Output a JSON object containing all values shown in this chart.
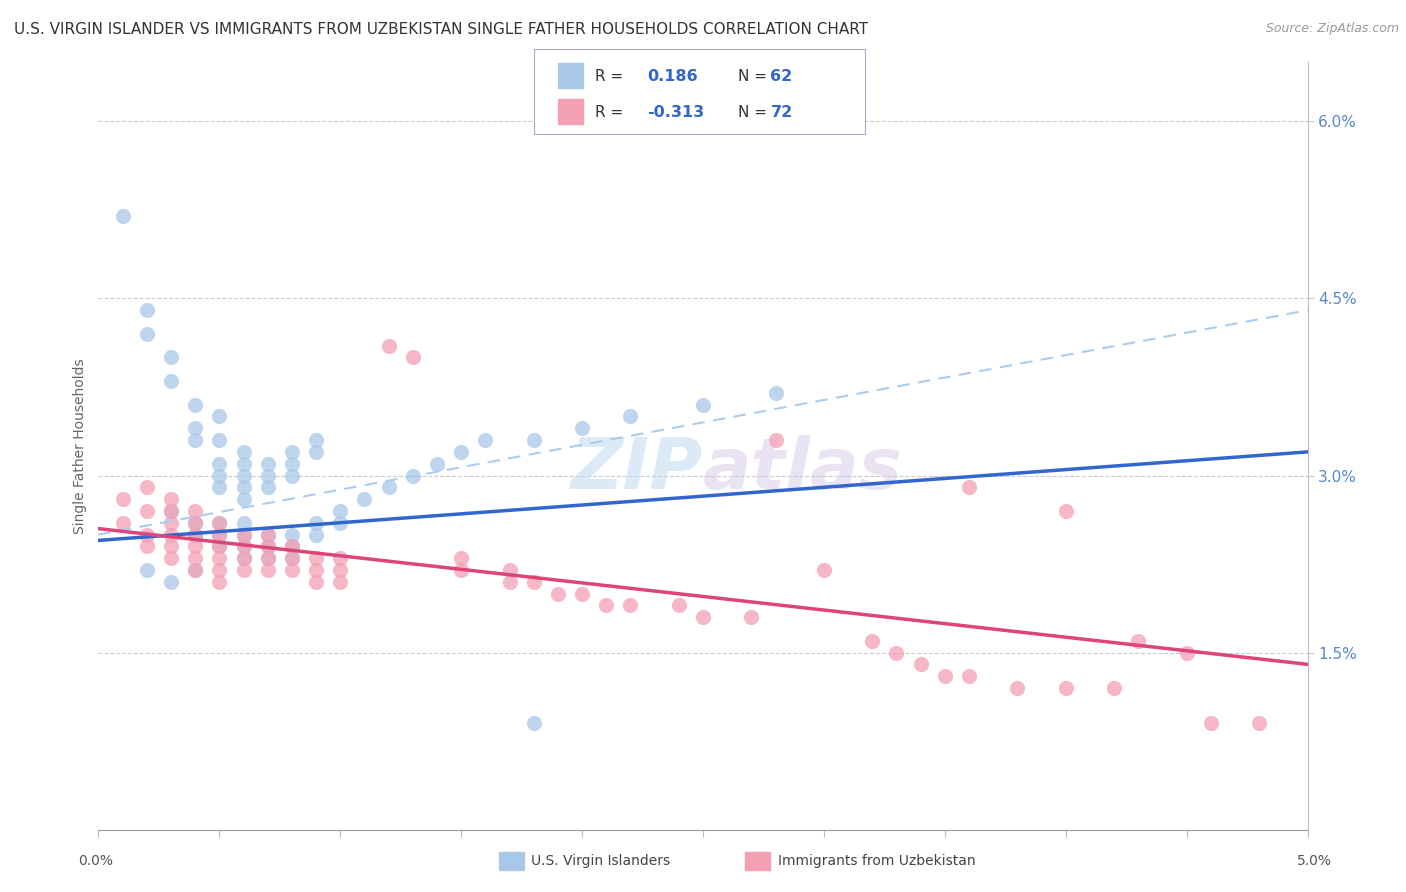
{
  "title": "U.S. VIRGIN ISLANDER VS IMMIGRANTS FROM UZBEKISTAN SINGLE FATHER HOUSEHOLDS CORRELATION CHART",
  "source": "Source: ZipAtlas.com",
  "ylabel": "Single Father Households",
  "xmin": 0.0,
  "xmax": 0.05,
  "ymin": 0.0,
  "ymax": 0.065,
  "yticks": [
    0.015,
    0.03,
    0.045,
    0.06
  ],
  "ytick_labels": [
    "1.5%",
    "3.0%",
    "4.5%",
    "6.0%"
  ],
  "blue_color": "#a8c8e8",
  "pink_color": "#f4a0b4",
  "blue_line_color": "#3366cc",
  "pink_line_color": "#dd4477",
  "dash_line_color": "#aaccee",
  "watermark_color": "#c8ddf0",
  "watermark_text": "ZIPatlas",
  "blue_trend_x": [
    0.0,
    0.05
  ],
  "blue_trend_y": [
    0.0245,
    0.032
  ],
  "pink_trend_x": [
    0.0,
    0.05
  ],
  "pink_trend_y": [
    0.0255,
    0.014
  ],
  "dash_trend_x": [
    0.0,
    0.05
  ],
  "dash_trend_y": [
    0.025,
    0.044
  ],
  "legend_r1": "0.186",
  "legend_n1": "62",
  "legend_r2": "-0.313",
  "legend_n2": "72",
  "blue_points": [
    [
      0.001,
      0.052
    ],
    [
      0.002,
      0.044
    ],
    [
      0.002,
      0.042
    ],
    [
      0.003,
      0.04
    ],
    [
      0.003,
      0.038
    ],
    [
      0.004,
      0.036
    ],
    [
      0.004,
      0.034
    ],
    [
      0.004,
      0.033
    ],
    [
      0.005,
      0.035
    ],
    [
      0.005,
      0.033
    ],
    [
      0.005,
      0.031
    ],
    [
      0.005,
      0.03
    ],
    [
      0.005,
      0.029
    ],
    [
      0.006,
      0.032
    ],
    [
      0.006,
      0.031
    ],
    [
      0.006,
      0.03
    ],
    [
      0.006,
      0.029
    ],
    [
      0.006,
      0.028
    ],
    [
      0.007,
      0.031
    ],
    [
      0.007,
      0.03
    ],
    [
      0.007,
      0.029
    ],
    [
      0.008,
      0.032
    ],
    [
      0.008,
      0.031
    ],
    [
      0.008,
      0.03
    ],
    [
      0.009,
      0.033
    ],
    [
      0.009,
      0.032
    ],
    [
      0.003,
      0.027
    ],
    [
      0.004,
      0.026
    ],
    [
      0.004,
      0.025
    ],
    [
      0.005,
      0.026
    ],
    [
      0.005,
      0.025
    ],
    [
      0.005,
      0.024
    ],
    [
      0.006,
      0.026
    ],
    [
      0.006,
      0.025
    ],
    [
      0.006,
      0.024
    ],
    [
      0.006,
      0.023
    ],
    [
      0.007,
      0.025
    ],
    [
      0.007,
      0.024
    ],
    [
      0.007,
      0.023
    ],
    [
      0.008,
      0.025
    ],
    [
      0.008,
      0.024
    ],
    [
      0.008,
      0.023
    ],
    [
      0.009,
      0.026
    ],
    [
      0.009,
      0.025
    ],
    [
      0.01,
      0.027
    ],
    [
      0.01,
      0.026
    ],
    [
      0.011,
      0.028
    ],
    [
      0.012,
      0.029
    ],
    [
      0.013,
      0.03
    ],
    [
      0.014,
      0.031
    ],
    [
      0.015,
      0.032
    ],
    [
      0.016,
      0.033
    ],
    [
      0.018,
      0.033
    ],
    [
      0.02,
      0.034
    ],
    [
      0.022,
      0.035
    ],
    [
      0.025,
      0.036
    ],
    [
      0.028,
      0.037
    ],
    [
      0.018,
      0.009
    ],
    [
      0.002,
      0.022
    ],
    [
      0.003,
      0.021
    ],
    [
      0.004,
      0.022
    ]
  ],
  "pink_points": [
    [
      0.001,
      0.028
    ],
    [
      0.001,
      0.026
    ],
    [
      0.002,
      0.029
    ],
    [
      0.002,
      0.027
    ],
    [
      0.002,
      0.025
    ],
    [
      0.002,
      0.024
    ],
    [
      0.003,
      0.028
    ],
    [
      0.003,
      0.027
    ],
    [
      0.003,
      0.026
    ],
    [
      0.003,
      0.025
    ],
    [
      0.003,
      0.024
    ],
    [
      0.003,
      0.023
    ],
    [
      0.004,
      0.027
    ],
    [
      0.004,
      0.026
    ],
    [
      0.004,
      0.025
    ],
    [
      0.004,
      0.024
    ],
    [
      0.004,
      0.023
    ],
    [
      0.004,
      0.022
    ],
    [
      0.005,
      0.026
    ],
    [
      0.005,
      0.025
    ],
    [
      0.005,
      0.024
    ],
    [
      0.005,
      0.023
    ],
    [
      0.005,
      0.022
    ],
    [
      0.005,
      0.021
    ],
    [
      0.006,
      0.025
    ],
    [
      0.006,
      0.024
    ],
    [
      0.006,
      0.023
    ],
    [
      0.006,
      0.022
    ],
    [
      0.007,
      0.025
    ],
    [
      0.007,
      0.024
    ],
    [
      0.007,
      0.023
    ],
    [
      0.007,
      0.022
    ],
    [
      0.008,
      0.024
    ],
    [
      0.008,
      0.023
    ],
    [
      0.008,
      0.022
    ],
    [
      0.009,
      0.023
    ],
    [
      0.009,
      0.022
    ],
    [
      0.009,
      0.021
    ],
    [
      0.01,
      0.023
    ],
    [
      0.01,
      0.022
    ],
    [
      0.01,
      0.021
    ],
    [
      0.012,
      0.041
    ],
    [
      0.013,
      0.04
    ],
    [
      0.015,
      0.023
    ],
    [
      0.015,
      0.022
    ],
    [
      0.017,
      0.022
    ],
    [
      0.017,
      0.021
    ],
    [
      0.018,
      0.021
    ],
    [
      0.019,
      0.02
    ],
    [
      0.02,
      0.02
    ],
    [
      0.021,
      0.019
    ],
    [
      0.022,
      0.019
    ],
    [
      0.024,
      0.019
    ],
    [
      0.025,
      0.018
    ],
    [
      0.027,
      0.018
    ],
    [
      0.028,
      0.033
    ],
    [
      0.03,
      0.022
    ],
    [
      0.032,
      0.016
    ],
    [
      0.033,
      0.015
    ],
    [
      0.034,
      0.014
    ],
    [
      0.035,
      0.013
    ],
    [
      0.036,
      0.013
    ],
    [
      0.038,
      0.012
    ],
    [
      0.04,
      0.012
    ],
    [
      0.042,
      0.012
    ],
    [
      0.036,
      0.029
    ],
    [
      0.04,
      0.027
    ],
    [
      0.043,
      0.016
    ],
    [
      0.045,
      0.015
    ],
    [
      0.046,
      0.009
    ],
    [
      0.048,
      0.009
    ]
  ]
}
